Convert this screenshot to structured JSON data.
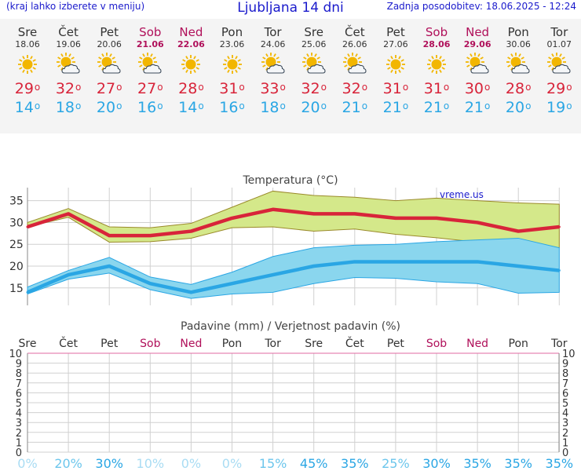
{
  "header": {
    "left_note": "(kraj lahko izberete v meniju)",
    "title": "Ljubljana 14 dni",
    "updated": "Zadnja posodobitev: 18.06.2025 - 12:24"
  },
  "days": [
    {
      "name": "Sre",
      "date": "18.06",
      "icon": "sun-icon",
      "max": "29",
      "min": "14",
      "weekend": false
    },
    {
      "name": "Čet",
      "date": "19.06",
      "icon": "sun-cloud-icon",
      "max": "32",
      "min": "18",
      "weekend": false
    },
    {
      "name": "Pet",
      "date": "20.06",
      "icon": "sun-cloud-icon",
      "max": "27",
      "min": "20",
      "weekend": false
    },
    {
      "name": "Sob",
      "date": "21.06",
      "icon": "sun-cloud-icon",
      "max": "27",
      "min": "16",
      "weekend": true
    },
    {
      "name": "Ned",
      "date": "22.06",
      "icon": "sun-icon",
      "max": "28",
      "min": "14",
      "weekend": true
    },
    {
      "name": "Pon",
      "date": "23.06",
      "icon": "sun-icon",
      "max": "31",
      "min": "16",
      "weekend": false
    },
    {
      "name": "Tor",
      "date": "24.06",
      "icon": "sun-cloud-icon",
      "max": "33",
      "min": "18",
      "weekend": false
    },
    {
      "name": "Sre",
      "date": "25.06",
      "icon": "sun-cloud-icon",
      "max": "32",
      "min": "20",
      "weekend": false
    },
    {
      "name": "Čet",
      "date": "26.06",
      "icon": "sun-cloud-icon",
      "max": "32",
      "min": "21",
      "weekend": false
    },
    {
      "name": "Pet",
      "date": "27.06",
      "icon": "sun-icon",
      "max": "31",
      "min": "21",
      "weekend": false
    },
    {
      "name": "Sob",
      "date": "28.06",
      "icon": "sun-icon",
      "max": "31",
      "min": "21",
      "weekend": true
    },
    {
      "name": "Ned",
      "date": "29.06",
      "icon": "sun-cloud-icon",
      "max": "30",
      "min": "21",
      "weekend": true
    },
    {
      "name": "Pon",
      "date": "30.06",
      "icon": "sun-cloud-icon",
      "max": "28",
      "min": "20",
      "weekend": false
    },
    {
      "name": "Tor",
      "date": "01.07",
      "icon": "sun-cloud-icon",
      "max": "29",
      "min": "19",
      "weekend": false
    }
  ],
  "colors": {
    "max_color": "#d8243a",
    "min_color": "#2aa6e4",
    "weekend_color": "#b0105a",
    "max_band": "#d4e88a",
    "min_band": "#8ad6ee",
    "sun": "#f2b600"
  },
  "chart_data": [
    {
      "type": "line",
      "title": "Temperatura (°C)",
      "watermark": "vreme.us",
      "ylim": [
        11,
        38
      ],
      "yticks": [
        15,
        20,
        25,
        30,
        35
      ],
      "grid": true,
      "series": [
        {
          "values": [
            29,
            32,
            27,
            27,
            28,
            31,
            33,
            32,
            32,
            31,
            31,
            30,
            28,
            29
          ]
        },
        {
          "values": [
            14,
            18,
            20,
            16,
            14,
            16,
            18,
            20,
            21,
            21,
            21,
            21,
            20,
            19
          ]
        }
      ],
      "max_band_upper": [
        30,
        33.2,
        29,
        28.8,
        29.8,
        33.5,
        37.2,
        36.2,
        35.8,
        35,
        35.6,
        35,
        34.5,
        34.2
      ],
      "max_band_lower": [
        29,
        31.2,
        25.5,
        25.6,
        26.4,
        28.8,
        29,
        28,
        28.5,
        27.3,
        26.5,
        25.5,
        22,
        24.2
      ],
      "min_band_upper": [
        15.2,
        19,
        22,
        17.5,
        15.8,
        18.6,
        22.2,
        24.2,
        24.8,
        25,
        25.6,
        26,
        26.4,
        24.2
      ],
      "min_band_lower": [
        13.6,
        17,
        18.4,
        14.6,
        12.6,
        13.6,
        14,
        16,
        17.4,
        17.2,
        16.4,
        16,
        13.8,
        14
      ]
    },
    {
      "type": "bar",
      "title": "Padavine (mm) / Verjetnost padavin (%)",
      "categories": [
        "Sre",
        "Čet",
        "Pet",
        "Sob",
        "Ned",
        "Pon",
        "Tor",
        "Sre",
        "Čet",
        "Pet",
        "Sob",
        "Ned",
        "Pon",
        "Tor"
      ],
      "ylim": [
        0,
        10
      ],
      "yticks": [
        0,
        1,
        2,
        3,
        4,
        5,
        6,
        7,
        8,
        9,
        10
      ],
      "precip_mm": [
        0,
        0,
        0,
        0,
        0,
        0,
        0,
        0,
        0,
        0,
        0,
        0,
        0,
        0
      ],
      "probability_labels": [
        "0%",
        "20%",
        "30%",
        "10%",
        "0%",
        "0%",
        "15%",
        "45%",
        "35%",
        "25%",
        "30%",
        "35%",
        "35%",
        "35%"
      ],
      "probability": [
        0,
        20,
        30,
        10,
        0,
        0,
        15,
        45,
        35,
        25,
        30,
        35,
        35,
        35
      ]
    }
  ]
}
